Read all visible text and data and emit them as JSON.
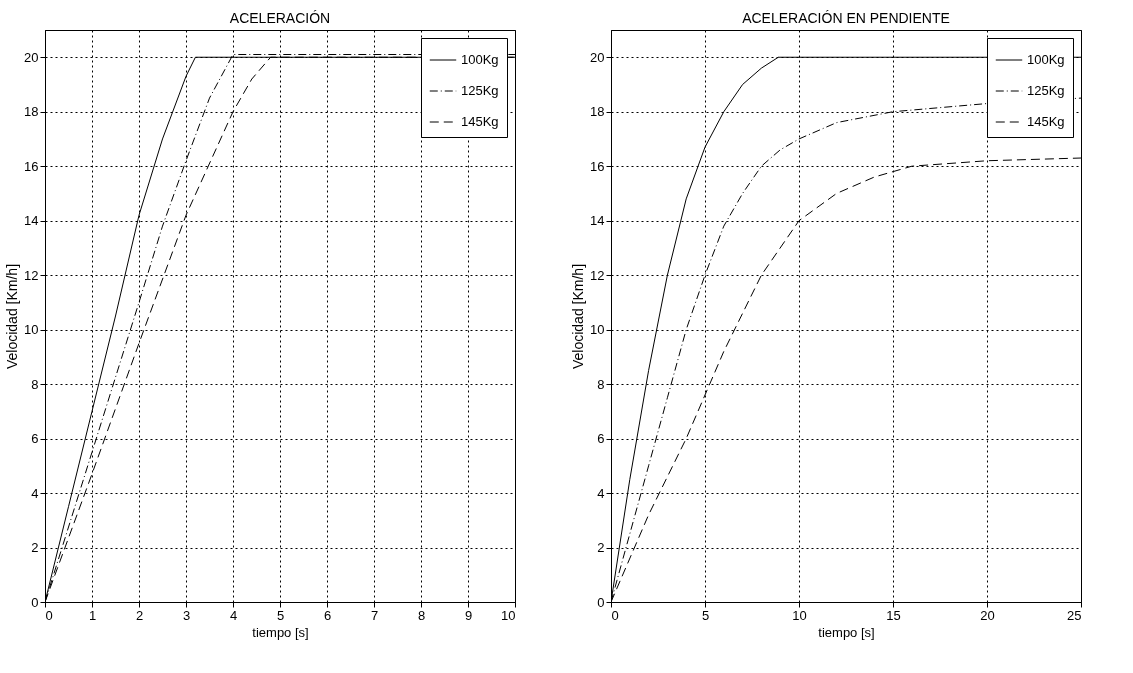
{
  "chart_data": [
    {
      "type": "line",
      "title": "ACELERACIÓN",
      "xlabel": "tiempo [s]",
      "ylabel": "Velocidad  [Km/h]",
      "xlim": [
        0,
        10
      ],
      "xticks": [
        0,
        1,
        2,
        3,
        4,
        5,
        6,
        7,
        8,
        9,
        10
      ],
      "ylim": [
        0,
        21
      ],
      "yticks": [
        0,
        2,
        4,
        6,
        8,
        10,
        12,
        14,
        16,
        18,
        20
      ],
      "grid": true,
      "legend": "top right",
      "series": [
        {
          "name": "100Kg",
          "color": "#000000",
          "line_style": "solid",
          "x": [
            0,
            0.5,
            1,
            1.5,
            2,
            2.5,
            3,
            3.2,
            10
          ],
          "values": [
            0,
            3.5,
            7,
            10.5,
            14.2,
            17,
            19.3,
            20,
            20
          ]
        },
        {
          "name": "125Kg",
          "color": "#000000",
          "line_style": "dashdot",
          "x": [
            0,
            1,
            2,
            2.5,
            3,
            3.5,
            4,
            10
          ],
          "values": [
            0,
            5.5,
            11,
            13.8,
            16.2,
            18.5,
            20.1,
            20.1
          ]
        },
        {
          "name": "145Kg",
          "color": "#000000",
          "line_style": "dashed",
          "x": [
            0,
            1,
            2,
            3,
            4,
            4.4,
            4.8,
            10
          ],
          "values": [
            0,
            4.7,
            9.5,
            14.2,
            18,
            19.2,
            20,
            20
          ]
        }
      ]
    },
    {
      "type": "line",
      "title": "ACELERACIÓN EN PENDIENTE",
      "xlabel": "tiempo [s]",
      "ylabel": "Velocidad  [Km/h]",
      "xlim": [
        0,
        25
      ],
      "xticks": [
        0,
        5,
        10,
        15,
        20,
        25
      ],
      "ylim": [
        0,
        21
      ],
      "yticks": [
        0,
        2,
        4,
        6,
        8,
        10,
        12,
        14,
        16,
        18,
        20
      ],
      "grid": true,
      "legend": "top right",
      "series": [
        {
          "name": "100Kg",
          "color": "#000000",
          "line_style": "solid",
          "x": [
            0,
            1,
            2,
            3,
            4,
            5,
            6,
            7,
            8,
            8.9,
            25
          ],
          "values": [
            0,
            4.5,
            8.5,
            12,
            14.8,
            16.7,
            18,
            19,
            19.6,
            20,
            20
          ]
        },
        {
          "name": "125Kg",
          "color": "#000000",
          "line_style": "dashdot",
          "x": [
            0,
            1,
            2,
            3,
            4,
            5,
            6,
            7,
            8,
            9,
            10,
            12,
            15,
            20,
            25
          ],
          "values": [
            0,
            2.5,
            5,
            7.5,
            10,
            12,
            13.8,
            15,
            16,
            16.6,
            17,
            17.6,
            18,
            18.3,
            18.5
          ]
        },
        {
          "name": "145Kg",
          "color": "#000000",
          "line_style": "dashed",
          "x": [
            0,
            2,
            4,
            5,
            6,
            8,
            10,
            12,
            14,
            16,
            20,
            25
          ],
          "values": [
            0,
            3.2,
            6,
            7.6,
            9.2,
            12,
            14,
            15,
            15.6,
            16,
            16.2,
            16.3
          ]
        }
      ]
    }
  ]
}
